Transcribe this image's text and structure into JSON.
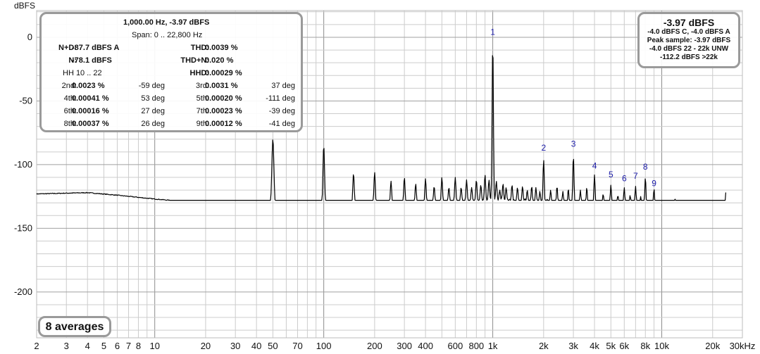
{
  "chart_data": {
    "type": "line",
    "ylabel": "dBFS",
    "xscale": "log",
    "xlim": [
      2,
      30000
    ],
    "ylim": [
      -236,
      21
    ],
    "grid": true,
    "x_ticks": [
      {
        "v": 2,
        "label": "2"
      },
      {
        "v": 3,
        "label": "3"
      },
      {
        "v": 4,
        "label": "4"
      },
      {
        "v": 5,
        "label": "5"
      },
      {
        "v": 6,
        "label": "6"
      },
      {
        "v": 7,
        "label": "7"
      },
      {
        "v": 8,
        "label": "8"
      },
      {
        "v": 10,
        "label": "10"
      },
      {
        "v": 20,
        "label": "20"
      },
      {
        "v": 30,
        "label": "30"
      },
      {
        "v": 40,
        "label": "40"
      },
      {
        "v": 50,
        "label": "50"
      },
      {
        "v": 70,
        "label": "70"
      },
      {
        "v": 100,
        "label": "100"
      },
      {
        "v": 200,
        "label": "200"
      },
      {
        "v": 300,
        "label": "300"
      },
      {
        "v": 400,
        "label": "400"
      },
      {
        "v": 600,
        "label": "600"
      },
      {
        "v": 800,
        "label": "800"
      },
      {
        "v": 1000,
        "label": "1k"
      },
      {
        "v": 2000,
        "label": "2k"
      },
      {
        "v": 3000,
        "label": "3k"
      },
      {
        "v": 4000,
        "label": "4k"
      },
      {
        "v": 5000,
        "label": "5k"
      },
      {
        "v": 6000,
        "label": "6k"
      },
      {
        "v": 8000,
        "label": "8k"
      },
      {
        "v": 10000,
        "label": "10k"
      },
      {
        "v": 20000,
        "label": "20k"
      },
      {
        "v": 30000,
        "label": "30kHz"
      }
    ],
    "y_ticks": [
      {
        "v": 0,
        "label": "0"
      },
      {
        "v": -50,
        "label": "-50"
      },
      {
        "v": -100,
        "label": "-100"
      },
      {
        "v": -150,
        "label": "-150"
      },
      {
        "v": -200,
        "label": "-200"
      }
    ],
    "series": [
      {
        "color": "#000000",
        "noise_floor": [
          [
            2,
            -123
          ],
          [
            4,
            -122
          ],
          [
            6,
            -124
          ],
          [
            10,
            -127
          ],
          [
            15,
            -129
          ],
          [
            20,
            -131
          ],
          [
            40,
            -134
          ],
          [
            100,
            -135
          ],
          [
            300,
            -133
          ],
          [
            1000,
            -128
          ],
          [
            3000,
            -134
          ],
          [
            10000,
            -136
          ],
          [
            24000,
            -145
          ]
        ],
        "peaks": [
          {
            "f": 50,
            "db": -80
          },
          {
            "f": 100,
            "db": -85
          },
          {
            "f": 150,
            "db": -107
          },
          {
            "f": 200,
            "db": -106
          },
          {
            "f": 250,
            "db": -113
          },
          {
            "f": 300,
            "db": -110
          },
          {
            "f": 350,
            "db": -115
          },
          {
            "f": 400,
            "db": -111
          },
          {
            "f": 450,
            "db": -117
          },
          {
            "f": 500,
            "db": -110
          },
          {
            "f": 550,
            "db": -118
          },
          {
            "f": 600,
            "db": -110
          },
          {
            "f": 650,
            "db": -118
          },
          {
            "f": 700,
            "db": -112
          },
          {
            "f": 750,
            "db": -118
          },
          {
            "f": 800,
            "db": -112
          },
          {
            "f": 850,
            "db": -116
          },
          {
            "f": 900,
            "db": -108
          },
          {
            "f": 950,
            "db": -112
          },
          {
            "f": 1000,
            "db": -3.97
          },
          {
            "f": 1050,
            "db": -113
          },
          {
            "f": 1100,
            "db": -120
          },
          {
            "f": 1150,
            "db": -115
          },
          {
            "f": 1200,
            "db": -118
          },
          {
            "f": 1300,
            "db": -116
          },
          {
            "f": 1400,
            "db": -118
          },
          {
            "f": 1500,
            "db": -117
          },
          {
            "f": 1600,
            "db": -120
          },
          {
            "f": 1700,
            "db": -117
          },
          {
            "f": 1800,
            "db": -118
          },
          {
            "f": 1900,
            "db": -121
          },
          {
            "f": 2000,
            "db": -96
          },
          {
            "f": 2200,
            "db": -120
          },
          {
            "f": 2400,
            "db": -117
          },
          {
            "f": 2600,
            "db": -121
          },
          {
            "f": 2800,
            "db": -119
          },
          {
            "f": 3000,
            "db": -93
          },
          {
            "f": 3300,
            "db": -120
          },
          {
            "f": 3600,
            "db": -118
          },
          {
            "f": 4000,
            "db": -108
          },
          {
            "f": 4500,
            "db": -123
          },
          {
            "f": 5000,
            "db": -116
          },
          {
            "f": 5500,
            "db": -124
          },
          {
            "f": 6000,
            "db": -118
          },
          {
            "f": 6500,
            "db": -124
          },
          {
            "f": 7000,
            "db": -117
          },
          {
            "f": 7500,
            "db": -125
          },
          {
            "f": 8000,
            "db": -110
          },
          {
            "f": 9000,
            "db": -119
          },
          {
            "f": 12000,
            "db": -127
          },
          {
            "f": 15000,
            "db": -128
          },
          {
            "f": 18000,
            "db": -128
          },
          {
            "f": 24000,
            "db": -120
          }
        ]
      }
    ],
    "harmonic_markers": [
      {
        "label": "1",
        "f": 1000,
        "db": 2
      },
      {
        "label": "2",
        "f": 2000,
        "db": -89
      },
      {
        "label": "3",
        "f": 3000,
        "db": -86
      },
      {
        "label": "4",
        "f": 4000,
        "db": -103
      },
      {
        "label": "5",
        "f": 5000,
        "db": -110
      },
      {
        "label": "6",
        "f": 6000,
        "db": -113
      },
      {
        "label": "7",
        "f": 7000,
        "db": -111
      },
      {
        "label": "8",
        "f": 8000,
        "db": -104
      },
      {
        "label": "9",
        "f": 9000,
        "db": -117
      }
    ],
    "colors": {
      "trace": "#000000",
      "grid": "#cccccc",
      "grid_major": "#8c8c8c",
      "markers": "#1a1aa8",
      "box_border": "#9a9a9a"
    }
  },
  "info_box": {
    "freq_line": "1,000.00 Hz, -3.97 dBFS",
    "span_line": "Span: 0 .. 22,800 Hz",
    "nd_label": "N+D:",
    "nd_value": "-87.7 dBFS A",
    "thd_label": "THD:",
    "thd_value": "0.0039 %",
    "n_label": "N:",
    "n_value": "-78.1 dBFS",
    "thdn_label": "THD+N:",
    "thdn_value": "0.020 %",
    "hh_label": "HH 10 .. 22",
    "hhd_label": "HHD:",
    "hhd_value": "0.00029 %",
    "harmonics": [
      {
        "label": "2nd:",
        "value": "0.0023 %",
        "phase": "-59 deg"
      },
      {
        "label": "3rd:",
        "value": "0.0031 %",
        "phase": "37 deg"
      },
      {
        "label": "4th:",
        "value": "0.00041 %",
        "phase": "53 deg"
      },
      {
        "label": "5th:",
        "value": "0.00020 %",
        "phase": "-111 deg"
      },
      {
        "label": "6th:",
        "value": "0.00016 %",
        "phase": "27 deg"
      },
      {
        "label": "7th:",
        "value": "0.00023 %",
        "phase": "-39 deg"
      },
      {
        "label": "8th:",
        "value": "0.00037 %",
        "phase": "26 deg"
      },
      {
        "label": "9th:",
        "value": "0.00012 %",
        "phase": "-41 deg"
      }
    ]
  },
  "level_box": {
    "main": "-3.97 dBFS",
    "line1": "-4.0 dBFS C, -4.0 dBFS A",
    "line2": "Peak sample: -3.97 dBFS",
    "line3": "-4.0 dBFS 22 - 22k UNW",
    "line4": "-112.2 dBFS >22k"
  },
  "averages_label": "8 averages"
}
